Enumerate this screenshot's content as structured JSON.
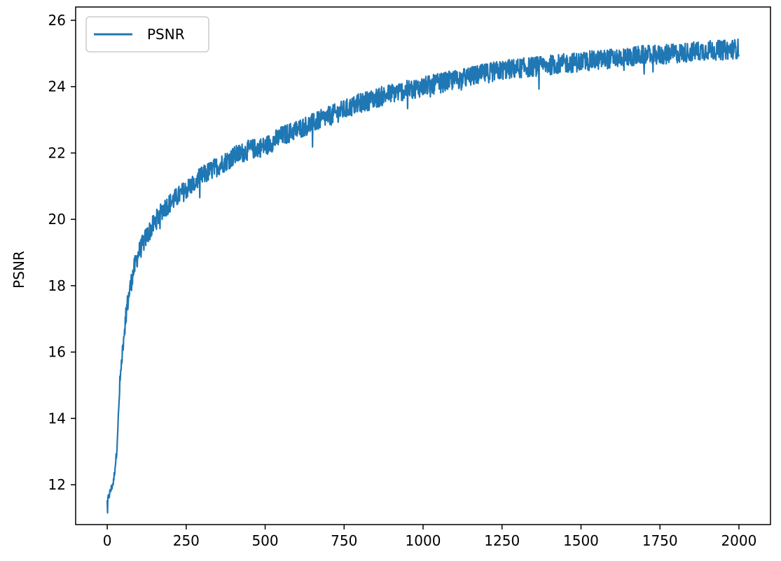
{
  "chart_data": {
    "type": "line",
    "title": "",
    "xlabel": "",
    "ylabel": "PSNR",
    "xlim": [
      -100,
      2100
    ],
    "ylim": [
      10.8,
      26.4
    ],
    "x_ticks": [
      0,
      250,
      500,
      750,
      1000,
      1250,
      1500,
      1750,
      2000
    ],
    "y_ticks": [
      12,
      14,
      16,
      18,
      20,
      22,
      24,
      26
    ],
    "grid": false,
    "legend": {
      "position": "top-left",
      "entries": [
        "PSNR"
      ]
    },
    "color": "#1f77b4",
    "series": [
      {
        "name": "PSNR",
        "x": [
          0,
          10,
          20,
          30,
          40,
          50,
          60,
          70,
          80,
          90,
          100,
          125,
          150,
          175,
          200,
          250,
          300,
          350,
          400,
          450,
          500,
          550,
          600,
          650,
          700,
          750,
          800,
          850,
          900,
          950,
          1000,
          1050,
          1100,
          1150,
          1200,
          1250,
          1300,
          1350,
          1400,
          1450,
          1500,
          1550,
          1600,
          1650,
          1700,
          1750,
          1800,
          1850,
          1900,
          1950,
          2000
        ],
        "values": [
          11.5,
          11.8,
          12.1,
          13.0,
          15.0,
          16.3,
          17.2,
          17.8,
          18.3,
          18.7,
          19.0,
          19.5,
          19.9,
          20.3,
          20.5,
          20.9,
          21.3,
          21.6,
          21.9,
          22.1,
          22.2,
          22.5,
          22.7,
          22.9,
          23.1,
          23.3,
          23.5,
          23.65,
          23.8,
          23.9,
          24.0,
          24.1,
          24.2,
          24.3,
          24.4,
          24.5,
          24.55,
          24.6,
          24.65,
          24.7,
          24.75,
          24.8,
          24.85,
          24.9,
          24.95,
          24.95,
          25.0,
          25.05,
          25.1,
          25.1,
          25.15
        ],
        "noise_amplitude": 0.3
      }
    ]
  }
}
